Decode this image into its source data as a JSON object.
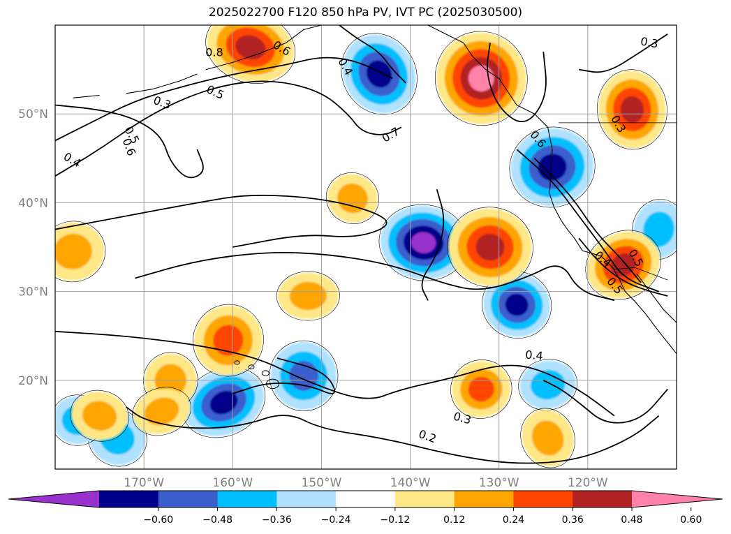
{
  "chart_data": {
    "type": "heatmap",
    "title": "2025022700 F120 850 hPa PV, IVT PC (2025030500)",
    "map": {
      "lon_range": [
        -180,
        -110
      ],
      "lat_range": [
        10,
        60
      ],
      "x_ticks": [
        "170°W",
        "160°W",
        "150°W",
        "140°W",
        "130°W",
        "120°W"
      ],
      "x_tick_lons": [
        -170,
        -160,
        -150,
        -140,
        -130,
        -120
      ],
      "y_ticks": [
        "50°N",
        "40°N",
        "30°N",
        "20°N"
      ],
      "y_tick_lats": [
        50,
        40,
        30,
        20
      ],
      "grid": true
    },
    "colorbar": {
      "ticks": [
        "-0.60",
        "-0.48",
        "-0.36",
        "-0.24",
        "-0.12",
        "0.12",
        "0.24",
        "0.36",
        "0.48",
        "0.60"
      ],
      "colors": [
        "#9932CC",
        "#00008B",
        "#3A5FCD",
        "#00BFFF",
        "#B0E2FF",
        "#FFFFFF",
        "#FFE787",
        "#FFA500",
        "#FF4500",
        "#B22222",
        "#FF82AB"
      ],
      "extend": "both",
      "placement": "bottom"
    },
    "contour_labels": [
      "0.8",
      "0.4",
      "0.6",
      "0.3",
      "0.5",
      "0.7",
      "0.6",
      "0.5",
      "0.6",
      "0.4",
      "0.3",
      "0.4",
      "0.5",
      "0.5",
      "0.3",
      "0.3",
      "0.2",
      "0.4"
    ],
    "pc_regions": [
      {
        "lon": -143.5,
        "lat": 54.5,
        "value": -0.54
      },
      {
        "lon": -138.5,
        "lat": 35.5,
        "value": -0.62
      },
      {
        "lon": -124,
        "lat": 44,
        "value": -0.5
      },
      {
        "lon": -128,
        "lat": 28.5,
        "value": -0.5
      },
      {
        "lon": -152,
        "lat": 20.5,
        "value": -0.4
      },
      {
        "lon": -161,
        "lat": 17.5,
        "value": -0.5
      },
      {
        "lon": -112,
        "lat": 37,
        "value": -0.3
      },
      {
        "lon": -124.5,
        "lat": 19.5,
        "value": -0.3
      },
      {
        "lon": -173,
        "lat": 13.5,
        "value": -0.25
      },
      {
        "lon": -177.5,
        "lat": 15.5,
        "value": -0.3
      },
      {
        "lon": -132,
        "lat": 54,
        "value": 0.65
      },
      {
        "lon": -158,
        "lat": 57.5,
        "value": 0.55
      },
      {
        "lon": -115,
        "lat": 50.5,
        "value": 0.5
      },
      {
        "lon": -116,
        "lat": 33,
        "value": 0.5
      },
      {
        "lon": -131,
        "lat": 35,
        "value": 0.5
      },
      {
        "lon": -132,
        "lat": 19,
        "value": 0.4
      },
      {
        "lon": -160.5,
        "lat": 24.5,
        "value": 0.42
      },
      {
        "lon": -151.5,
        "lat": 29.5,
        "value": 0.28
      },
      {
        "lon": -124.5,
        "lat": 13.5,
        "value": 0.3
      },
      {
        "lon": -175,
        "lat": 16,
        "value": 0.3
      },
      {
        "lon": -178,
        "lat": 34.5,
        "value": 0.3
      },
      {
        "lon": -146.5,
        "lat": 40.5,
        "value": 0.3
      },
      {
        "lon": -167,
        "lat": 20,
        "value": 0.25
      },
      {
        "lon": -168,
        "lat": 16.5,
        "value": 0.25
      }
    ]
  }
}
